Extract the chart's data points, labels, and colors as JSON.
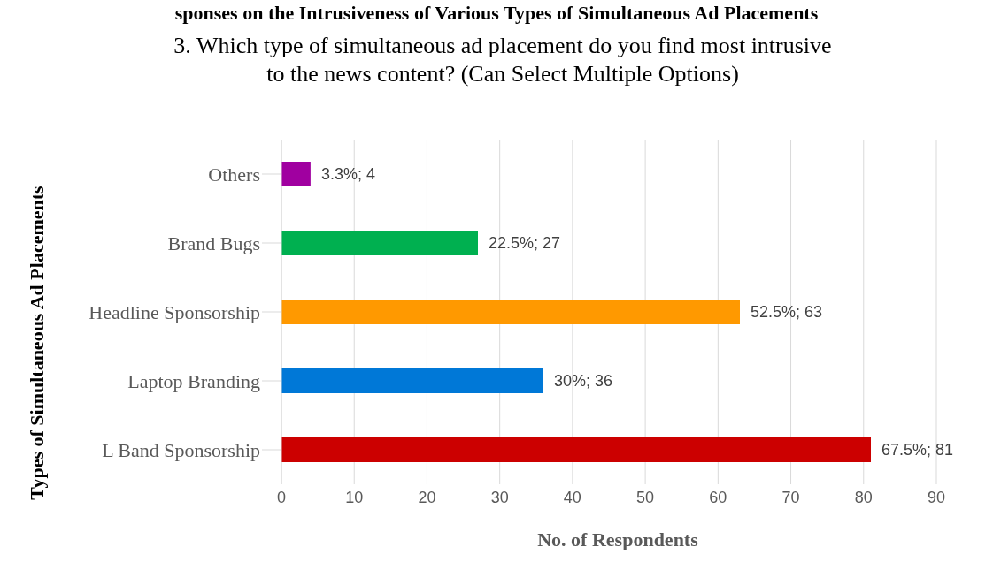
{
  "chart_data": {
    "type": "bar",
    "orientation": "horizontal",
    "title": "sponses on the Intrusiveness of Various Types of Simultaneous Ad Placements",
    "subtitle": "3. Which type of simultaneous ad placement do you find most intrusive to the news content? (Can Select Multiple Options)",
    "xlabel": "No. of Respondents",
    "ylabel": "Types of Simultaneous Ad Placements",
    "categories": [
      "Others",
      "Brand Bugs",
      "Headline Sponsorship",
      "Laptop Branding",
      "L Band Sponsorship"
    ],
    "values": [
      4,
      27,
      63,
      36,
      81
    ],
    "colors": [
      "#a000a0",
      "#00b050",
      "#ff9900",
      "#0078d7",
      "#cc0000"
    ],
    "value_labels": [
      "3.3%; 4",
      "22.5%; 27",
      "52.5%; 63",
      "30%; 36",
      "67.5%; 81"
    ],
    "xlim": [
      0,
      90
    ],
    "xticks": [
      0,
      10,
      20,
      30,
      40,
      50,
      60,
      70,
      80,
      90
    ],
    "grid": "x",
    "legend": false
  }
}
